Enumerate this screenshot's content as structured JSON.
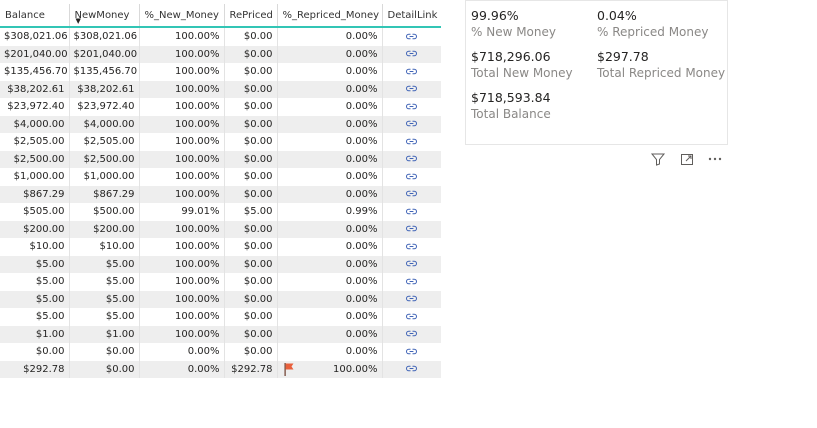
{
  "table": {
    "columns": [
      "Balance",
      "NewMoney",
      "%_New_Money",
      "RePriced",
      "%_Repriced_Money",
      "DetailLink"
    ],
    "sorted_column": "NewMoney",
    "rows": [
      {
        "balance": "$308,021.06",
        "new_money": "$308,021.06",
        "pct_new": "100.00%",
        "repriced": "$0.00",
        "pct_repriced": "0.00%",
        "flag": false
      },
      {
        "balance": "$201,040.00",
        "new_money": "$201,040.00",
        "pct_new": "100.00%",
        "repriced": "$0.00",
        "pct_repriced": "0.00%",
        "flag": false
      },
      {
        "balance": "$135,456.70",
        "new_money": "$135,456.70",
        "pct_new": "100.00%",
        "repriced": "$0.00",
        "pct_repriced": "0.00%",
        "flag": false
      },
      {
        "balance": "$38,202.61",
        "new_money": "$38,202.61",
        "pct_new": "100.00%",
        "repriced": "$0.00",
        "pct_repriced": "0.00%",
        "flag": false
      },
      {
        "balance": "$23,972.40",
        "new_money": "$23,972.40",
        "pct_new": "100.00%",
        "repriced": "$0.00",
        "pct_repriced": "0.00%",
        "flag": false
      },
      {
        "balance": "$4,000.00",
        "new_money": "$4,000.00",
        "pct_new": "100.00%",
        "repriced": "$0.00",
        "pct_repriced": "0.00%",
        "flag": false
      },
      {
        "balance": "$2,505.00",
        "new_money": "$2,505.00",
        "pct_new": "100.00%",
        "repriced": "$0.00",
        "pct_repriced": "0.00%",
        "flag": false
      },
      {
        "balance": "$2,500.00",
        "new_money": "$2,500.00",
        "pct_new": "100.00%",
        "repriced": "$0.00",
        "pct_repriced": "0.00%",
        "flag": false
      },
      {
        "balance": "$1,000.00",
        "new_money": "$1,000.00",
        "pct_new": "100.00%",
        "repriced": "$0.00",
        "pct_repriced": "0.00%",
        "flag": false
      },
      {
        "balance": "$867.29",
        "new_money": "$867.29",
        "pct_new": "100.00%",
        "repriced": "$0.00",
        "pct_repriced": "0.00%",
        "flag": false
      },
      {
        "balance": "$505.00",
        "new_money": "$500.00",
        "pct_new": "99.01%",
        "repriced": "$5.00",
        "pct_repriced": "0.99%",
        "flag": false
      },
      {
        "balance": "$200.00",
        "new_money": "$200.00",
        "pct_new": "100.00%",
        "repriced": "$0.00",
        "pct_repriced": "0.00%",
        "flag": false
      },
      {
        "balance": "$10.00",
        "new_money": "$10.00",
        "pct_new": "100.00%",
        "repriced": "$0.00",
        "pct_repriced": "0.00%",
        "flag": false
      },
      {
        "balance": "$5.00",
        "new_money": "$5.00",
        "pct_new": "100.00%",
        "repriced": "$0.00",
        "pct_repriced": "0.00%",
        "flag": false
      },
      {
        "balance": "$5.00",
        "new_money": "$5.00",
        "pct_new": "100.00%",
        "repriced": "$0.00",
        "pct_repriced": "0.00%",
        "flag": false
      },
      {
        "balance": "$5.00",
        "new_money": "$5.00",
        "pct_new": "100.00%",
        "repriced": "$0.00",
        "pct_repriced": "0.00%",
        "flag": false
      },
      {
        "balance": "$5.00",
        "new_money": "$5.00",
        "pct_new": "100.00%",
        "repriced": "$0.00",
        "pct_repriced": "0.00%",
        "flag": false
      },
      {
        "balance": "$1.00",
        "new_money": "$1.00",
        "pct_new": "100.00%",
        "repriced": "$0.00",
        "pct_repriced": "0.00%",
        "flag": false
      },
      {
        "balance": "$0.00",
        "new_money": "$0.00",
        "pct_new": "0.00%",
        "repriced": "$0.00",
        "pct_repriced": "0.00%",
        "flag": false
      },
      {
        "balance": "$292.78",
        "new_money": "$0.00",
        "pct_new": "0.00%",
        "repriced": "$292.78",
        "pct_repriced": "100.00%",
        "flag": true
      }
    ],
    "link_icon": "link-icon",
    "flag_icon": "flag-icon",
    "flag_color": "#e8603c",
    "header_accent_color": "#32c5b5"
  },
  "card": {
    "kpis": [
      {
        "value": "99.96%",
        "label": "% New Money"
      },
      {
        "value": "0.04%",
        "label": "% Repriced Money"
      },
      {
        "value": "$718,296.06",
        "label": "Total New Money"
      },
      {
        "value": "$297.78",
        "label": "Total Repriced Money"
      },
      {
        "value": "$718,593.84",
        "label": "Total Balance"
      }
    ]
  },
  "visual_header": {
    "icons": [
      "filter-icon",
      "focus-mode-icon",
      "more-options-icon"
    ]
  }
}
